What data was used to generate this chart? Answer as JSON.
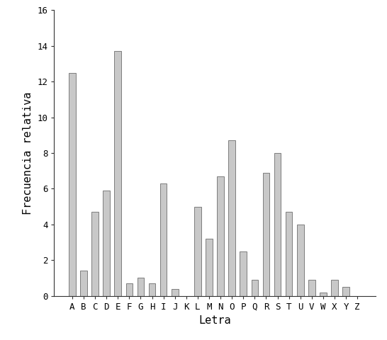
{
  "categories": [
    "A",
    "B",
    "C",
    "D",
    "E",
    "F",
    "G",
    "H",
    "I",
    "J",
    "K",
    "L",
    "M",
    "N",
    "O",
    "P",
    "Q",
    "R",
    "S",
    "T",
    "U",
    "V",
    "W",
    "X",
    "Y",
    "Z"
  ],
  "values": [
    12.5,
    1.4,
    4.7,
    5.9,
    13.7,
    0.7,
    1.0,
    0.7,
    6.3,
    0.4,
    0.0,
    5.0,
    3.2,
    6.7,
    8.7,
    2.5,
    0.9,
    6.9,
    8.0,
    4.7,
    4.0,
    0.9,
    0.2,
    0.9,
    0.5,
    0.0
  ],
  "bar_color": "#c8c8c8",
  "bar_edgecolor": "#555555",
  "xlabel": "Letra",
  "ylabel": "Frecuencia relativa",
  "ylim": [
    0,
    16
  ],
  "yticks": [
    0,
    2,
    4,
    6,
    8,
    10,
    12,
    14,
    16
  ],
  "background_color": "#ffffff",
  "xlabel_fontsize": 11,
  "ylabel_fontsize": 11,
  "tick_fontsize": 9,
  "bar_width": 0.6
}
